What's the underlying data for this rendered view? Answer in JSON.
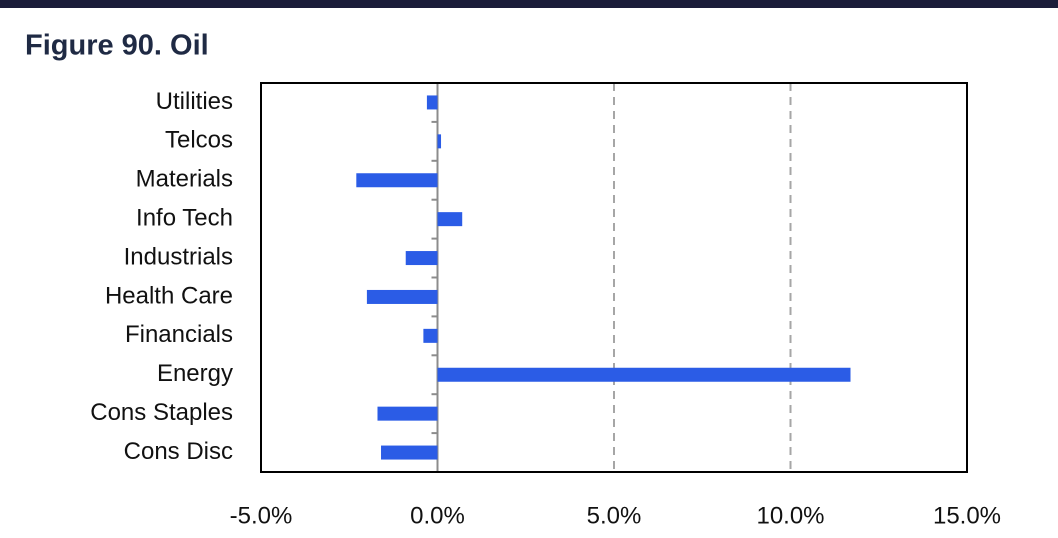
{
  "chart_data": {
    "type": "hbar",
    "title": "Figure 90. Oil",
    "categories": [
      "Utilities",
      "Telcos",
      "Materials",
      "Info Tech",
      "Industrials",
      "Health Care",
      "Financials",
      "Energy",
      "Cons Staples",
      "Cons Disc"
    ],
    "values": [
      -0.3,
      0.1,
      -2.3,
      0.7,
      -0.9,
      -2.0,
      -0.4,
      11.7,
      -1.7,
      -1.6
    ],
    "color": "#2b5ce6",
    "xlim": [
      -5,
      15
    ],
    "xticks": [
      {
        "value": -5,
        "label": "-5.0%"
      },
      {
        "value": 0,
        "label": "0.0%"
      },
      {
        "value": 5,
        "label": "5.0%"
      },
      {
        "value": 10,
        "label": "10.0%"
      },
      {
        "value": 15,
        "label": "15.0%"
      }
    ],
    "grid": true
  }
}
